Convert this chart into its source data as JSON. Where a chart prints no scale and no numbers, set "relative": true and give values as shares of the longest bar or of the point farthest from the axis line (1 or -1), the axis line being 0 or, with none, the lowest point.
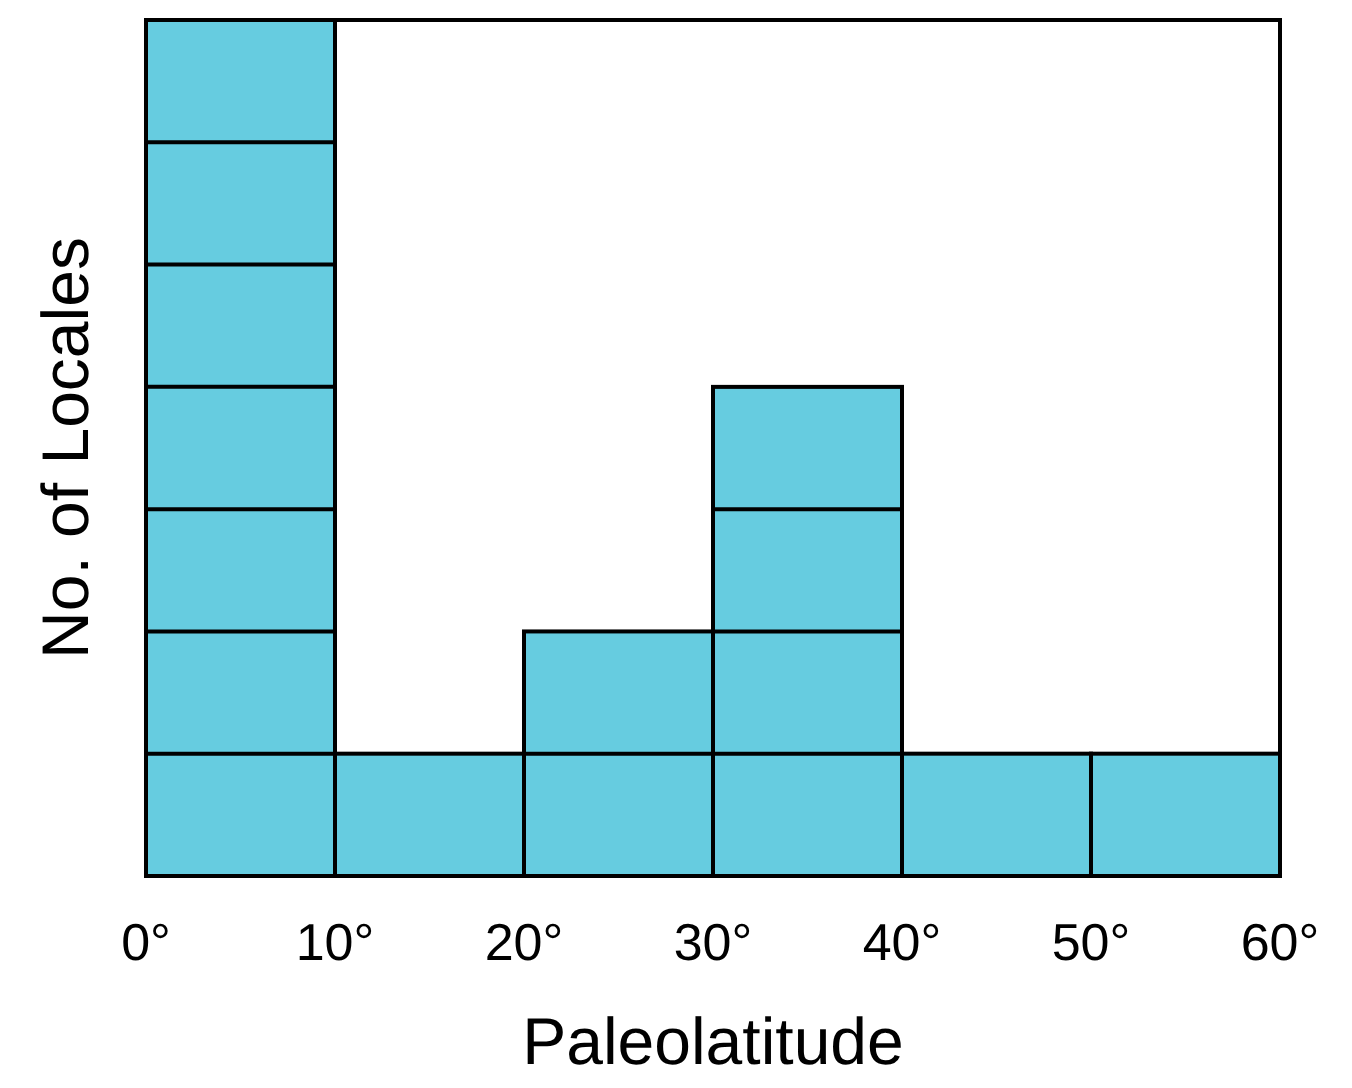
{
  "chart_data": {
    "type": "bar",
    "xlabel": "Paleolatitude",
    "ylabel": "No. of Locales",
    "relative": true,
    "x": [
      5,
      15,
      25,
      35,
      45,
      55
    ],
    "values": [
      1,
      0.1429,
      0.2857,
      0.5714,
      0.1429,
      0.1429
    ],
    "color": "#66cce0",
    "xlim": [
      0,
      60
    ],
    "xticks": [
      {
        "value": 0,
        "label": "0°"
      },
      {
        "value": 10,
        "label": "10°"
      },
      {
        "value": 20,
        "label": "20°"
      },
      {
        "value": 30,
        "label": "30°"
      },
      {
        "value": 40,
        "label": "40°"
      },
      {
        "value": 50,
        "label": "50°"
      },
      {
        "value": 60,
        "label": "60°"
      }
    ],
    "tick_labels": "x"
  }
}
